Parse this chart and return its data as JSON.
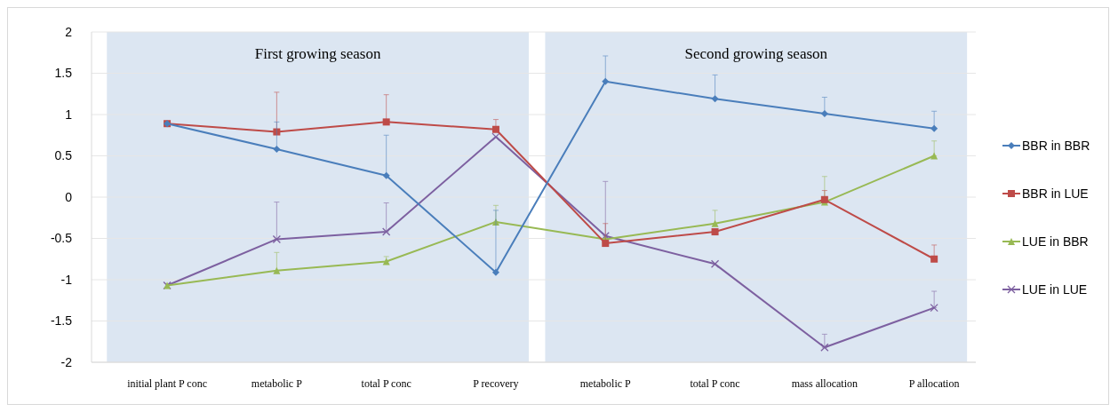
{
  "chart_data": {
    "type": "line",
    "categories": [
      "initial plant P conc",
      "metabolic P",
      "total P conc",
      "P recovery",
      "metabolic P",
      "total P conc",
      "mass allocation",
      "P allocation"
    ],
    "ylim": [
      -2,
      2
    ],
    "yticks": [
      {
        "value": -2,
        "label": "-2"
      },
      {
        "value": -1.5,
        "label": "-1.5"
      },
      {
        "value": -1,
        "label": "-1"
      },
      {
        "value": -0.5,
        "label": "-0.5"
      },
      0,
      0.5,
      1,
      1.5,
      2
    ],
    "grid": "y",
    "legend": "right",
    "line_style": "solid",
    "annotations": [
      "First growing season",
      "Second growing season"
    ],
    "series": [
      {
        "name": "BBR in BBR",
        "color": "#4a7ebb",
        "marker": "diamond",
        "values": [
          0.89,
          0.58,
          0.26,
          -0.91,
          1.4,
          1.19,
          1.01,
          0.83
        ],
        "errors": [
          null,
          [
            0.58,
            0.91
          ],
          [
            0.26,
            0.75
          ],
          [
            -0.91,
            -0.16
          ],
          [
            1.4,
            1.71
          ],
          [
            1.19,
            1.48
          ],
          [
            1.01,
            1.21
          ],
          [
            0.83,
            1.04
          ]
        ]
      },
      {
        "name": "BBR in LUE",
        "color": "#be4b48",
        "marker": "square",
        "values": [
          0.89,
          0.79,
          0.91,
          0.82,
          -0.56,
          -0.42,
          -0.03,
          -0.75
        ],
        "errors": [
          null,
          [
            0.79,
            1.27
          ],
          [
            0.91,
            1.24
          ],
          [
            0.82,
            0.94
          ],
          [
            -0.56,
            -0.32
          ],
          null,
          [
            -0.03,
            0.08
          ],
          [
            -0.75,
            -0.58
          ]
        ]
      },
      {
        "name": "LUE in BBR",
        "color": "#98b954",
        "marker": "triangle",
        "values": [
          -1.07,
          -0.89,
          -0.78,
          -0.3,
          -0.51,
          -0.32,
          -0.06,
          0.5
        ],
        "errors": [
          null,
          [
            -0.89,
            -0.67
          ],
          [
            -0.78,
            -0.72
          ],
          [
            -0.3,
            -0.1
          ],
          null,
          [
            -0.32,
            -0.16
          ],
          [
            -0.06,
            0.25
          ],
          [
            0.5,
            0.68
          ]
        ]
      },
      {
        "name": "LUE in LUE",
        "color": "#7d60a0",
        "marker": "cross",
        "values": [
          -1.07,
          -0.51,
          -0.42,
          0.73,
          -0.47,
          -0.81,
          -1.82,
          -1.34
        ],
        "errors": [
          null,
          [
            -0.51,
            -0.06
          ],
          [
            -0.42,
            -0.07
          ],
          null,
          [
            -0.47,
            0.19
          ],
          null,
          [
            -1.82,
            -1.66
          ],
          [
            -1.34,
            -1.14
          ]
        ]
      }
    ]
  }
}
